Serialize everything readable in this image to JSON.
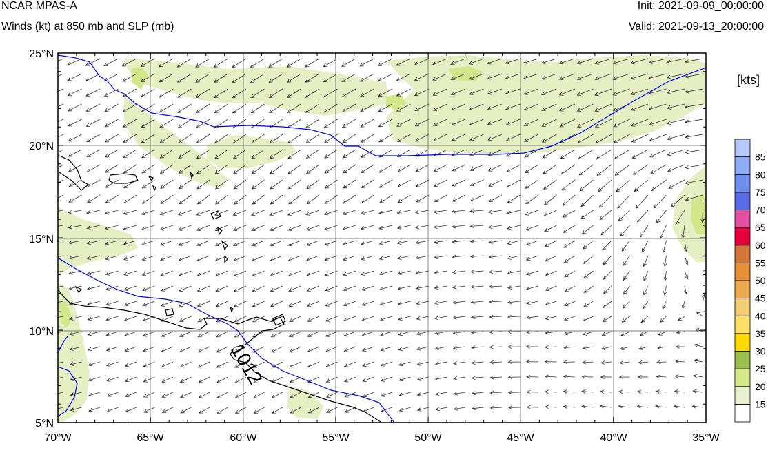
{
  "header": {
    "title": "NCAR MPAS-A",
    "subtitle": "Winds (kt) at 850 mb and SLP (mb)",
    "init": "Init: 2021-09-09_00:00:00",
    "valid": "Valid: 2021-09-13_20:00:00"
  },
  "map": {
    "lon_range": [
      -70,
      -35
    ],
    "lat_range": [
      5,
      25
    ],
    "lat_ticks": [
      "5°N",
      "10°N",
      "15°N",
      "20°N",
      "25°N"
    ],
    "lon_ticks": [
      "70°W",
      "65°W",
      "60°W",
      "55°W",
      "50°W",
      "45°W",
      "40°W",
      "35°W"
    ],
    "contour_label": "1012",
    "colors": {
      "slp_contour": "#0000ff",
      "coast": "#000000",
      "wind_15_20": "#e6efc4",
      "wind_20_25": "#d4e68a"
    }
  },
  "colorbar": {
    "units": "[kts]",
    "labels": [
      "15",
      "20",
      "25",
      "30",
      "35",
      "40",
      "45",
      "50",
      "55",
      "60",
      "65",
      "70",
      "75",
      "80",
      "85"
    ],
    "colors": [
      "#ffffff",
      "#e8f0cf",
      "#d7e889",
      "#9cbf52",
      "#ffd900",
      "#ffe066",
      "#f2cd74",
      "#eba952",
      "#e98f3a",
      "#d4753a",
      "#e8003c",
      "#e451a2",
      "#5b6be8",
      "#6f8fee",
      "#8eacf5",
      "#b7c9fb"
    ]
  }
}
